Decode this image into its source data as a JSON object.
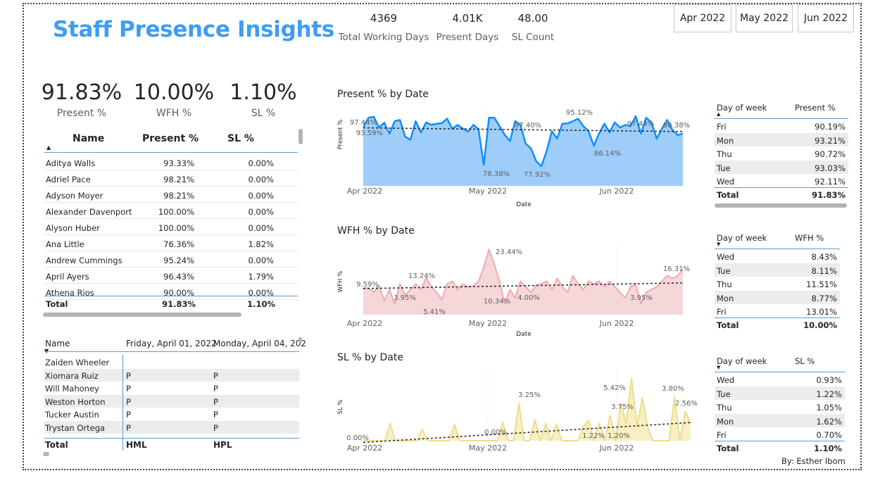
{
  "title": "Staff Presence Insights",
  "top_kpis": [
    {
      "value": "4369",
      "label": "Total Working Days"
    },
    {
      "value": "4.01K",
      "label": "Present Days"
    },
    {
      "value": "48.00",
      "label": "SL Count"
    }
  ],
  "month_buttons": [
    "Apr 2022",
    "May 2022",
    "Jun 2022"
  ],
  "big_kpis": [
    {
      "value": "91.83%",
      "label": "Present %"
    },
    {
      "value": "10.00%",
      "label": "WFH %"
    },
    {
      "value": "1.10%",
      "label": "SL %"
    }
  ],
  "staff_table": {
    "headers": [
      "Name",
      "Present %",
      "SL %"
    ],
    "rows": [
      [
        "Aditya Walls",
        "93.33%",
        "0.00%"
      ],
      [
        "Adriel Pace",
        "98.21%",
        "0.00%"
      ],
      [
        "Adyson Moyer",
        "98.21%",
        "0.00%"
      ],
      [
        "Alexander Davenport",
        "100.00%",
        "0.00%"
      ],
      [
        "Alyson Huber",
        "100.00%",
        "0.00%"
      ],
      [
        "Ana Little",
        "76.36%",
        "1.82%"
      ],
      [
        "Andrew Cummings",
        "95.24%",
        "0.00%"
      ],
      [
        "April Ayers",
        "96.43%",
        "1.79%"
      ],
      [
        "Athena Rios",
        "90.00%",
        "0.00%"
      ]
    ],
    "total": [
      "Total",
      "91.83%",
      "1.10%"
    ]
  },
  "attendance_table": {
    "headers": [
      "Name",
      "Friday, April 01, 2022",
      "Monday, April 04, 202"
    ],
    "rows": [
      [
        "Zaiden Wheeler",
        "",
        ""
      ],
      [
        "Xiomara Ruiz",
        "P",
        "P"
      ],
      [
        "Will Mahoney",
        "P",
        "P"
      ],
      [
        "Weston Horton",
        "P",
        "P"
      ],
      [
        "Tucker Austin",
        "P",
        "P"
      ],
      [
        "Trystan Ortega",
        "P",
        "P"
      ]
    ],
    "total": [
      "Total",
      "HML",
      "HPL"
    ]
  },
  "charts": [
    {
      "title": "Present % by Date",
      "ylabel": "Present %",
      "xlabel": "Date",
      "ticks": [
        "Apr 2022",
        "May 2022",
        "Jun 2022"
      ],
      "labels": [
        "97.44%",
        "93.59%",
        "97.40%",
        "95.12%",
        "78.38%",
        "77.92%",
        "86.14%",
        "97.44%",
        "90.38%"
      ]
    },
    {
      "title": "WFH % by Date",
      "ylabel": "WFH %",
      "xlabel": "Date",
      "ticks": [
        "Apr 2022",
        "May 2022",
        "Jun 2022"
      ],
      "labels": [
        "9.59%",
        "13.24%",
        "3.95%",
        "5.41%",
        "23.44%",
        "10.34%",
        "4.00%",
        "3.95%",
        "16.31%"
      ]
    },
    {
      "title": "SL % by Date",
      "ylabel": "SL %",
      "xlabel": "",
      "ticks": [
        "Apr 2022",
        "May 2022",
        "Jun 2022"
      ],
      "labels": [
        "0.00%",
        "3.25%",
        "0.00%",
        "5.42%",
        "3.75%",
        "1.22%",
        "1.20%",
        "3.80%",
        "2.56%"
      ]
    }
  ],
  "chart_data": [
    {
      "type": "area",
      "title": "Present % by Date",
      "xlabel": "Date",
      "ylabel": "Present %",
      "x_ticks": [
        "Apr 2022",
        "May 2022",
        "Jun 2022"
      ],
      "trend": "linear-dotted",
      "values": [
        93.6,
        97.4,
        97.8,
        93.5,
        95.4,
        91.0,
        96.0,
        96.5,
        89.8,
        88.5,
        96.0,
        91.5,
        95.5,
        94.5,
        95.0,
        95.2,
        97.0,
        93.0,
        94.5,
        93.0,
        91.8,
        94.5,
        92.8,
        78.4,
        97.4,
        97.4,
        94.0,
        90.5,
        88.0,
        96.0,
        94.5,
        87.0,
        85.0,
        80.0,
        77.9,
        84.0,
        92.0,
        89.0,
        95.0,
        95.1,
        96.0,
        97.0,
        94.0,
        92.0,
        86.1,
        91.0,
        95.0,
        91.5,
        95.5,
        93.5,
        94.5,
        94.0,
        98.0,
        91.0,
        97.4,
        95.5,
        89.0,
        93.0,
        96.5,
        92.5,
        90.4,
        91.0
      ]
    },
    {
      "type": "area",
      "title": "WFH % by Date",
      "xlabel": "Date",
      "ylabel": "WFH %",
      "x_ticks": [
        "Apr 2022",
        "May 2022",
        "Jun 2022"
      ],
      "trend": "linear-dotted",
      "values": [
        9.6,
        9.6,
        8.0,
        10.5,
        5.0,
        9.0,
        3.95,
        11.0,
        7.0,
        9.0,
        11.0,
        9.0,
        13.2,
        10.0,
        8.0,
        5.41,
        11.0,
        12.0,
        9.0,
        11.0,
        10.0,
        10.3,
        12.0,
        17.0,
        23.4,
        18.0,
        12.0,
        4.0,
        9.0,
        6.0,
        12.0,
        10.0,
        8.0,
        10.5,
        11.0,
        12.0,
        9.0,
        13.0,
        10.0,
        8.0,
        14.0,
        11.0,
        9.0,
        12.0,
        11.0,
        12.0,
        10.0,
        12.0,
        10.0,
        8.0,
        6.0,
        10.0,
        11.0,
        3.95,
        8.0,
        9.0,
        10.0,
        12.0,
        14.0,
        13.0,
        14.0,
        16.3
      ]
    },
    {
      "type": "area",
      "title": "SL % by Date",
      "xlabel": "",
      "ylabel": "SL %",
      "x_ticks": [
        "Apr 2022",
        "May 2022",
        "Jun 2022"
      ],
      "trend": "linear-dotted",
      "values": [
        0,
        0,
        0,
        0,
        0,
        1.5,
        0,
        0,
        0,
        0,
        0,
        1.0,
        0,
        0,
        0,
        0,
        0,
        1.4,
        0,
        0,
        0,
        0,
        0,
        0,
        0,
        0,
        1.6,
        0,
        0,
        3.25,
        0,
        0,
        1.8,
        0,
        1.5,
        0,
        1.4,
        0,
        0,
        0,
        0,
        1.2,
        1.8,
        0,
        1.5,
        0,
        2.2,
        0,
        3.2,
        1.5,
        5.42,
        1.2,
        3.75,
        1.2,
        0,
        0,
        0,
        0,
        3.8,
        0,
        2.56,
        1.5
      ]
    }
  ],
  "dow_tables": [
    {
      "headers": [
        "Day of week",
        "Present %"
      ],
      "rows": [
        [
          "Fri",
          "90.19%"
        ],
        [
          "Mon",
          "93.21%"
        ],
        [
          "Thu",
          "90.72%"
        ],
        [
          "Tue",
          "93.03%"
        ],
        [
          "Wed",
          "92.11%"
        ]
      ],
      "total": [
        "Total",
        "91.83%"
      ]
    },
    {
      "headers": [
        "Day of week",
        "WFH %"
      ],
      "rows": [
        [
          "Wed",
          "8.43%"
        ],
        [
          "Tue",
          "8.11%"
        ],
        [
          "Thu",
          "11.51%"
        ],
        [
          "Mon",
          "8.77%"
        ],
        [
          "Fri",
          "13.01%"
        ]
      ],
      "total": [
        "Total",
        "10.00%"
      ]
    },
    {
      "headers": [
        "Day of week",
        "SL %"
      ],
      "rows": [
        [
          "Wed",
          "0.93%"
        ],
        [
          "Tue",
          "1.22%"
        ],
        [
          "Thu",
          "1.05%"
        ],
        [
          "Mon",
          "1.62%"
        ],
        [
          "Fri",
          "0.70%"
        ]
      ],
      "total": [
        "Total",
        "1.10%"
      ]
    }
  ],
  "credit": "By: Esther Ibom",
  "colors": {
    "title": "#3d9df3",
    "present_fill": "#9ecdf9",
    "present_line": "#118dff",
    "wfh_fill": "#f6d7d9",
    "wfh_line": "#f0a9b0",
    "sl_fill": "#f8efc2",
    "sl_line": "#eedd8e"
  }
}
